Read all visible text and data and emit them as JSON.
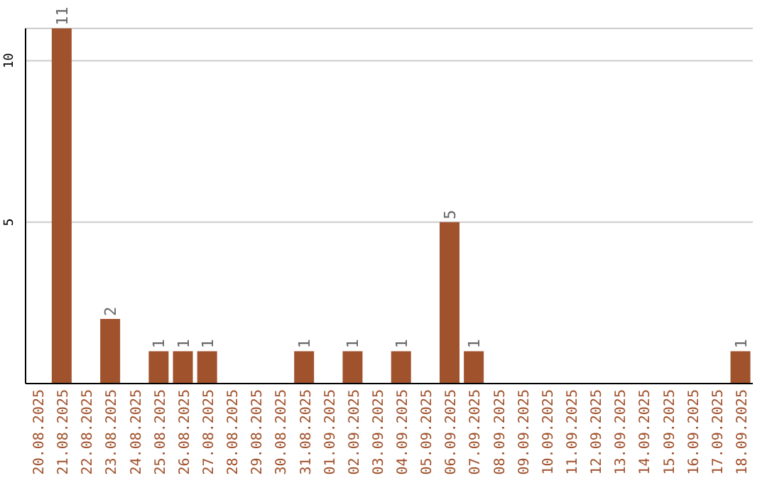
{
  "chart_data": {
    "type": "bar",
    "categories": [
      "20.08.2025",
      "21.08.2025",
      "22.08.2025",
      "23.08.2025",
      "24.08.2025",
      "25.08.2025",
      "26.08.2025",
      "27.08.2025",
      "28.08.2025",
      "29.08.2025",
      "30.08.2025",
      "31.08.2025",
      "01.09.2025",
      "02.09.2025",
      "03.09.2025",
      "04.09.2025",
      "05.09.2025",
      "06.09.2025",
      "07.09.2025",
      "08.09.2025",
      "09.09.2025",
      "10.09.2025",
      "11.09.2025",
      "12.09.2025",
      "13.09.2025",
      "14.09.2025",
      "15.09.2025",
      "16.09.2025",
      "17.09.2025",
      "18.09.2025"
    ],
    "values": [
      0,
      11,
      0,
      2,
      0,
      1,
      1,
      1,
      0,
      0,
      0,
      1,
      0,
      1,
      0,
      1,
      0,
      5,
      1,
      0,
      0,
      0,
      0,
      0,
      0,
      0,
      0,
      0,
      0,
      1
    ],
    "value_labels": [
      null,
      "11",
      null,
      "2",
      null,
      "1",
      "1",
      "1",
      null,
      null,
      null,
      "1",
      null,
      "1",
      null,
      "1",
      null,
      "5",
      "1",
      null,
      null,
      null,
      null,
      null,
      null,
      null,
      null,
      null,
      null,
      "1"
    ],
    "color": "#a0522d",
    "ylim": [
      0,
      11
    ],
    "yticks": [
      5,
      10
    ],
    "grid": "y"
  }
}
